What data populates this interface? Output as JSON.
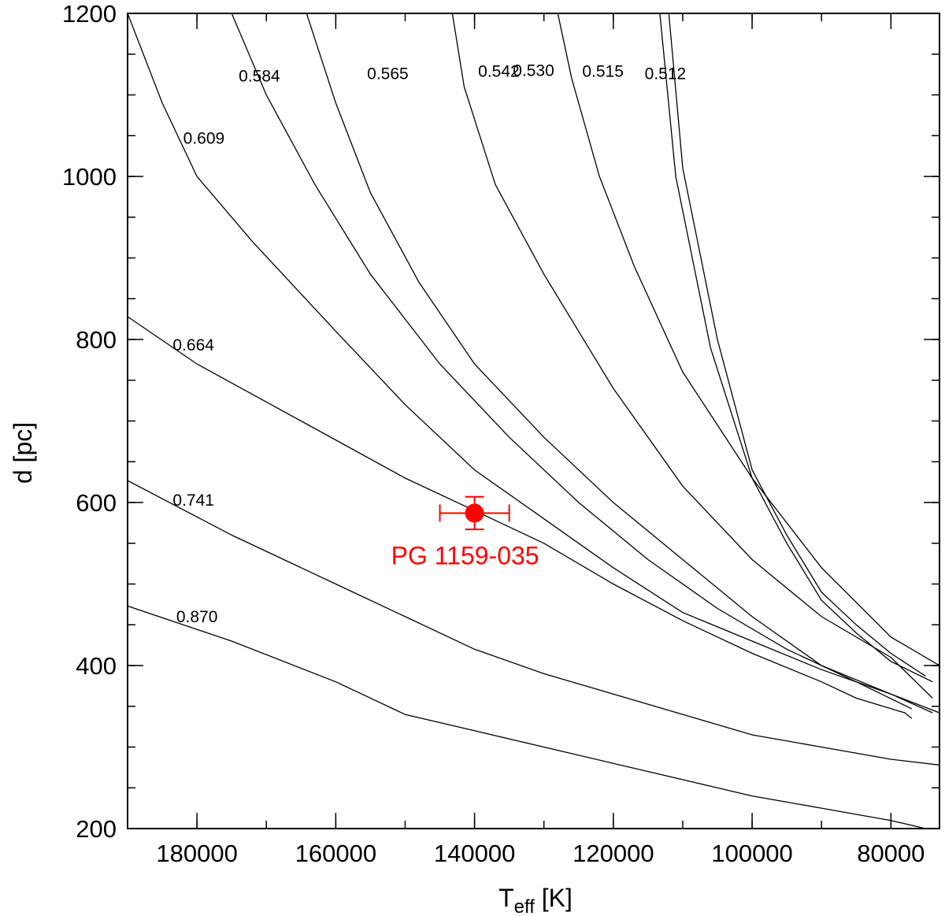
{
  "chart_data": {
    "type": "line",
    "xlabel": "T",
    "xlabel_sub": "eff",
    "xlabel_unit": "[K]",
    "ylabel": "d [pc]",
    "xlim": [
      190000,
      73000
    ],
    "ylim": [
      200,
      1200
    ],
    "x_ticks": [
      180000,
      160000,
      140000,
      120000,
      100000,
      80000
    ],
    "x_tick_labels": [
      "180000",
      "160000",
      "140000",
      "120000",
      "100000",
      "80000"
    ],
    "y_ticks": [
      200,
      400,
      600,
      800,
      1000,
      1200
    ],
    "y_tick_labels": [
      "200",
      "400",
      "600",
      "800",
      "1000",
      "1200"
    ],
    "x_minor_step": 10000,
    "y_minor_step": 50,
    "grid": false,
    "series": [
      {
        "name": "0.512",
        "points": [
          [
            112000,
            1200
          ],
          [
            110000,
            1010
          ],
          [
            105000,
            800
          ],
          [
            100000,
            640
          ],
          [
            95000,
            560
          ],
          [
            90000,
            490
          ],
          [
            85000,
            450
          ],
          [
            80000,
            415
          ],
          [
            75000,
            387
          ]
        ]
      },
      {
        "name": "0.515",
        "points": [
          [
            113300,
            1200
          ],
          [
            111000,
            1000
          ],
          [
            106000,
            790
          ],
          [
            100000,
            630
          ],
          [
            95000,
            550
          ],
          [
            90000,
            480
          ],
          [
            85000,
            440
          ],
          [
            80000,
            405
          ],
          [
            74000,
            380
          ]
        ]
      },
      {
        "name": "0.530",
        "points": [
          [
            128000,
            1200
          ],
          [
            126000,
            1120
          ],
          [
            122000,
            1000
          ],
          [
            117000,
            890
          ],
          [
            110000,
            760
          ],
          [
            100000,
            630
          ],
          [
            90000,
            520
          ],
          [
            80000,
            435
          ],
          [
            73000,
            400
          ]
        ]
      },
      {
        "name": "0.542",
        "points": [
          [
            143200,
            1200
          ],
          [
            141500,
            1110
          ],
          [
            137000,
            990
          ],
          [
            130000,
            880
          ],
          [
            120000,
            740
          ],
          [
            110000,
            620
          ],
          [
            100000,
            530
          ],
          [
            90000,
            460
          ],
          [
            80000,
            410
          ],
          [
            74000,
            360
          ]
        ]
      },
      {
        "name": "0.565",
        "points": [
          [
            164200,
            1200
          ],
          [
            160000,
            1090
          ],
          [
            155000,
            980
          ],
          [
            148000,
            870
          ],
          [
            140000,
            770
          ],
          [
            130000,
            680
          ],
          [
            120000,
            600
          ],
          [
            110000,
            530
          ],
          [
            100000,
            460
          ],
          [
            90000,
            400
          ],
          [
            80000,
            365
          ],
          [
            73000,
            342
          ]
        ]
      },
      {
        "name": "0.584",
        "points": [
          [
            175000,
            1200
          ],
          [
            170000,
            1100
          ],
          [
            163000,
            990
          ],
          [
            155000,
            880
          ],
          [
            145000,
            770
          ],
          [
            135000,
            680
          ],
          [
            125000,
            600
          ],
          [
            115000,
            530
          ],
          [
            105000,
            470
          ],
          [
            95000,
            420
          ],
          [
            85000,
            380
          ],
          [
            77000,
            347
          ]
        ]
      },
      {
        "name": "0.609",
        "points": [
          [
            190000,
            1200
          ],
          [
            185000,
            1090
          ],
          [
            180000,
            1000
          ],
          [
            172000,
            920
          ],
          [
            160000,
            810
          ],
          [
            150000,
            720
          ],
          [
            140000,
            640
          ],
          [
            130000,
            580
          ],
          [
            120000,
            520
          ],
          [
            110000,
            465
          ],
          [
            100000,
            430
          ],
          [
            90000,
            395
          ],
          [
            80000,
            365
          ],
          [
            74000,
            342
          ]
        ]
      },
      {
        "name": "0.664",
        "points": [
          [
            190000,
            828
          ],
          [
            180000,
            770
          ],
          [
            165000,
            700
          ],
          [
            150000,
            630
          ],
          [
            140000,
            590
          ],
          [
            130000,
            550
          ],
          [
            120000,
            500
          ],
          [
            110000,
            455
          ],
          [
            100000,
            415
          ],
          [
            90000,
            380
          ],
          [
            85000,
            360
          ],
          [
            78000,
            342
          ],
          [
            77000,
            335
          ]
        ]
      },
      {
        "name": "0.741",
        "points": [
          [
            190000,
            627
          ],
          [
            175000,
            560
          ],
          [
            160000,
            500
          ],
          [
            150000,
            460
          ],
          [
            140000,
            420
          ],
          [
            130000,
            390
          ],
          [
            120000,
            365
          ],
          [
            110000,
            340
          ],
          [
            100000,
            315
          ],
          [
            90000,
            300
          ],
          [
            80000,
            285
          ],
          [
            73000,
            278
          ]
        ]
      },
      {
        "name": "0.870",
        "points": [
          [
            190000,
            473
          ],
          [
            175000,
            430
          ],
          [
            160000,
            380
          ],
          [
            150000,
            340
          ],
          [
            140000,
            320
          ],
          [
            130000,
            300
          ],
          [
            120000,
            280
          ],
          [
            110000,
            260
          ],
          [
            100000,
            240
          ],
          [
            90000,
            225
          ],
          [
            80000,
            210
          ],
          [
            75000,
            200
          ]
        ]
      }
    ],
    "curve_labels": [
      {
        "text": "0.584",
        "x": 171000,
        "y": 1123
      },
      {
        "text": "0.565",
        "x": 152500,
        "y": 1126
      },
      {
        "text": "0.542",
        "x": 136500,
        "y": 1129
      },
      {
        "text": "0.530",
        "x": 131500,
        "y": 1130
      },
      {
        "text": "0.515",
        "x": 121500,
        "y": 1129
      },
      {
        "text": "0.512",
        "x": 112500,
        "y": 1126
      },
      {
        "text": "0.609",
        "x": 179000,
        "y": 1047
      },
      {
        "text": "0.664",
        "x": 180500,
        "y": 793
      },
      {
        "text": "0.741",
        "x": 180500,
        "y": 603
      },
      {
        "text": "0.870",
        "x": 180000,
        "y": 460
      }
    ],
    "object": {
      "label": "PG 1159-035",
      "teff": 140000,
      "teff_err": 5000,
      "d": 587,
      "d_err": 20,
      "color": "#ff0000"
    }
  }
}
